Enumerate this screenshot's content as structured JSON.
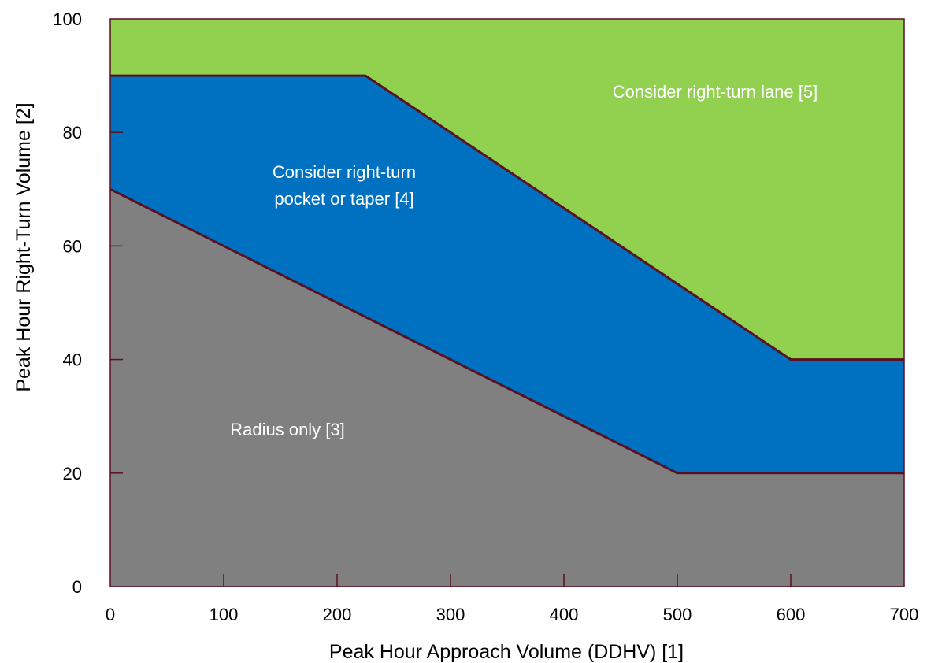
{
  "chart_data": {
    "type": "area",
    "xlabel": "Peak Hour Approach Volume (DDHV) [1]",
    "ylabel": "Peak Hour Right-Turn Volume [2]",
    "xlim": [
      0,
      700
    ],
    "ylim": [
      0,
      100
    ],
    "x_ticks": [
      "0",
      "100",
      "200",
      "300",
      "400",
      "500",
      "600",
      "700"
    ],
    "y_ticks": [
      "0",
      "20",
      "40",
      "60",
      "80",
      "100"
    ],
    "grid": false,
    "boundaries": [
      {
        "points": [
          [
            0,
            70
          ],
          [
            500,
            20
          ],
          [
            700,
            20
          ]
        ]
      },
      {
        "points": [
          [
            0,
            90
          ],
          [
            225,
            90
          ],
          [
            600,
            40
          ],
          [
            700,
            40
          ]
        ]
      }
    ],
    "regions": [
      {
        "label": "Radius only [3]",
        "color": "#808080"
      },
      {
        "label": "Consider right-turn pocket or taper [4]",
        "lines": [
          "Consider right-turn",
          "pocket or taper [4]"
        ],
        "color": "#0070c0"
      },
      {
        "label": "Consider right-turn lane [5]",
        "color": "#92d050"
      }
    ],
    "line_color": "#5a1020"
  }
}
